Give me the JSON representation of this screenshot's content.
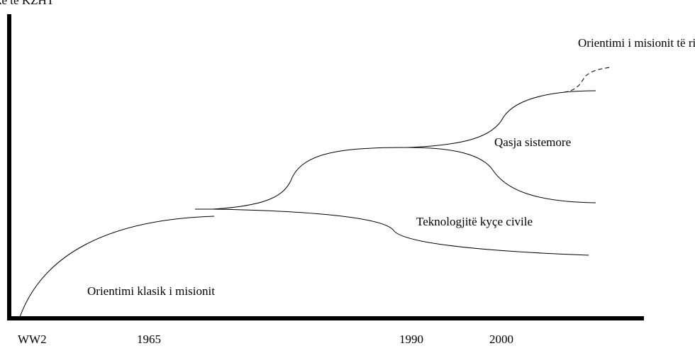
{
  "header": {
    "title": "ke te KZHT"
  },
  "labels": {
    "new_mission": "Orientimi i misionit të ri?",
    "systemic": "Qasja sistemore",
    "civil_tech": "Teknologjitë kyçe civile",
    "classic": "Orientimi klasik i misionit"
  },
  "axis_labels": [
    "WW2",
    "1965",
    "1990",
    "2000"
  ]
}
